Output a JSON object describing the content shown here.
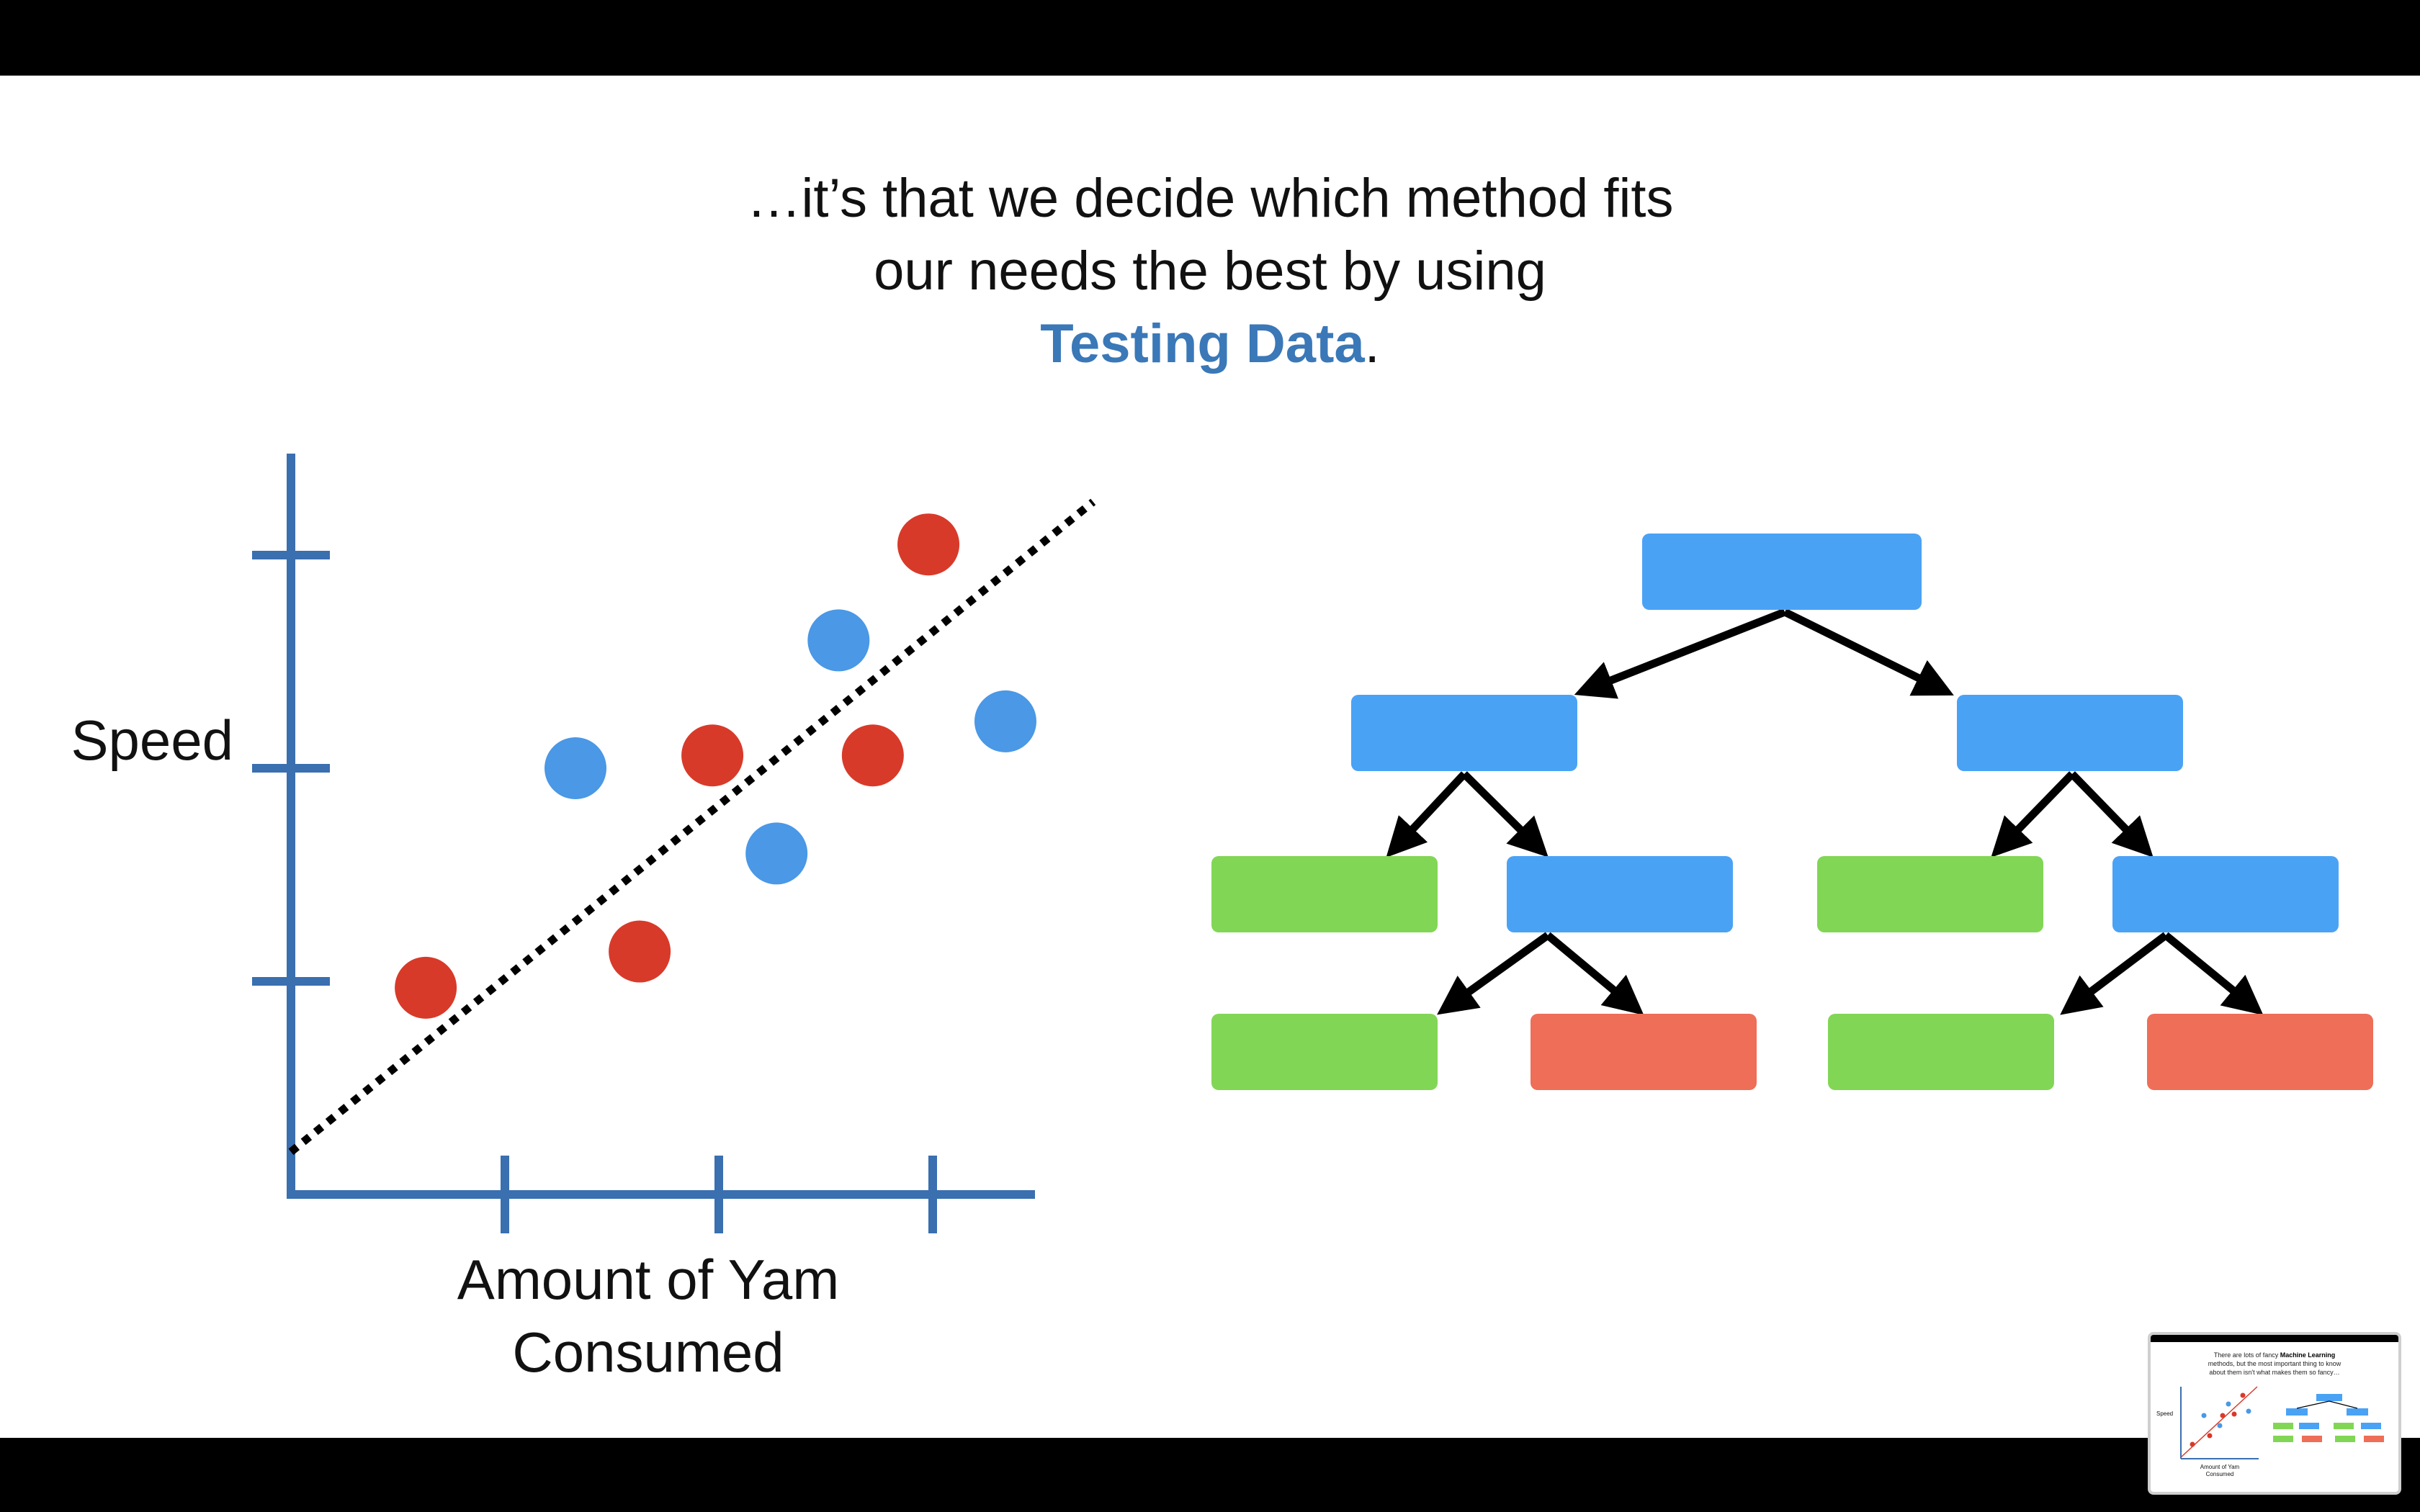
{
  "slide": {
    "caption_line1": "…it’s that we decide which method fits",
    "caption_line2": "our needs the best by using",
    "caption_highlight": "Testing Data",
    "caption_period": "."
  },
  "colors": {
    "axis": "#3a6fb0",
    "red_point": "#d83a2a",
    "blue_point": "#4a98e6",
    "node_blue": "#4aa2f5",
    "node_green": "#82d655",
    "node_red": "#ee6e58",
    "highlight_text": "#3a78b8"
  },
  "chart_data": {
    "type": "scatter",
    "xlabel_line1": "Amount of Yam",
    "xlabel_line2": "Consumed",
    "ylabel": "Speed",
    "xlim": [
      0,
      3.5
    ],
    "ylim": [
      0,
      3.2
    ],
    "x_ticks": [
      1,
      2,
      3
    ],
    "y_ticks": [
      1,
      2,
      3
    ],
    "fit_line": {
      "style": "dotted",
      "from": [
        0,
        0.2
      ],
      "to": [
        3.75,
        3.25
      ]
    },
    "series": [
      {
        "color": "red",
        "points": [
          [
            0.63,
            0.97
          ],
          [
            1.63,
            1.14
          ],
          [
            1.97,
            2.06
          ],
          [
            2.72,
            2.06
          ],
          [
            2.98,
            3.05
          ]
        ]
      },
      {
        "color": "blue",
        "points": [
          [
            1.33,
            2.0
          ],
          [
            2.27,
            1.6
          ],
          [
            2.56,
            2.6
          ],
          [
            3.34,
            2.22
          ]
        ]
      }
    ]
  },
  "tree": {
    "nodes": [
      {
        "id": "root",
        "color": "blue"
      },
      {
        "id": "l1-left",
        "color": "blue"
      },
      {
        "id": "l1-right",
        "color": "blue"
      },
      {
        "id": "l2-a",
        "color": "green"
      },
      {
        "id": "l2-b",
        "color": "blue"
      },
      {
        "id": "l2-c",
        "color": "green"
      },
      {
        "id": "l2-d",
        "color": "blue"
      },
      {
        "id": "l3-a",
        "color": "green"
      },
      {
        "id": "l3-b",
        "color": "red"
      },
      {
        "id": "l3-c",
        "color": "green"
      },
      {
        "id": "l3-d",
        "color": "red"
      }
    ]
  },
  "thumbnail": {
    "line1": "There are lots of fancy",
    "line1_bold": "Machine Learning",
    "line2": "methods, but the most important thing to know",
    "line3": "about them isn't what makes them so fancy…",
    "speed_label": "Speed",
    "x_label_line1": "Amount of Yam",
    "x_label_line2": "Consumed"
  }
}
